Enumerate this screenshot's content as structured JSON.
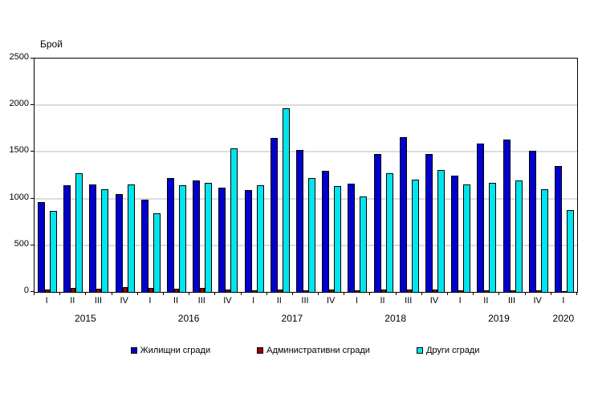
{
  "page": {
    "background": "#ffffff"
  },
  "chart_data": {
    "type": "bar",
    "title": "",
    "xlabel": "",
    "ylabel": "Брой",
    "ylim": [
      0,
      2500
    ],
    "yticks": [
      0,
      500,
      1000,
      1500,
      2000,
      2500
    ],
    "grid": true,
    "legend_position": "bottom",
    "categories": [
      "I",
      "II",
      "III",
      "IV",
      "I",
      "II",
      "III",
      "IV",
      "I",
      "II",
      "III",
      "IV",
      "I",
      "II",
      "III",
      "IV",
      "I",
      "II",
      "III",
      "IV",
      "I"
    ],
    "years": [
      {
        "label": "2015",
        "span": 4
      },
      {
        "label": "2016",
        "span": 4
      },
      {
        "label": "2017",
        "span": 4
      },
      {
        "label": "2018",
        "span": 4
      },
      {
        "label": "2019",
        "span": 4
      },
      {
        "label": "2020",
        "span": 1
      }
    ],
    "series": [
      {
        "key": "residential-buildings",
        "name": "Жилищни сгради",
        "color": "#0000CD",
        "values": [
          960,
          1140,
          1150,
          1050,
          990,
          1220,
          1190,
          1120,
          1090,
          1650,
          1520,
          1300,
          1160,
          1480,
          1660,
          1480,
          1250,
          1590,
          1630,
          1510,
          1350
        ]
      },
      {
        "key": "administrative-buildings",
        "name": "Административни сгради",
        "color": "#990000",
        "values": [
          30,
          40,
          35,
          50,
          40,
          35,
          45,
          25,
          20,
          30,
          20,
          25,
          20,
          25,
          25,
          25,
          20,
          20,
          15,
          20,
          10
        ]
      },
      {
        "key": "other-buildings",
        "name": "Други сгради",
        "color": "#00E5EE",
        "values": [
          870,
          1270,
          1100,
          1150,
          840,
          1140,
          1170,
          1540,
          1140,
          1970,
          1220,
          1130,
          1020,
          1270,
          1200,
          1310,
          1150,
          1170,
          1190,
          1100,
          880
        ]
      }
    ]
  }
}
